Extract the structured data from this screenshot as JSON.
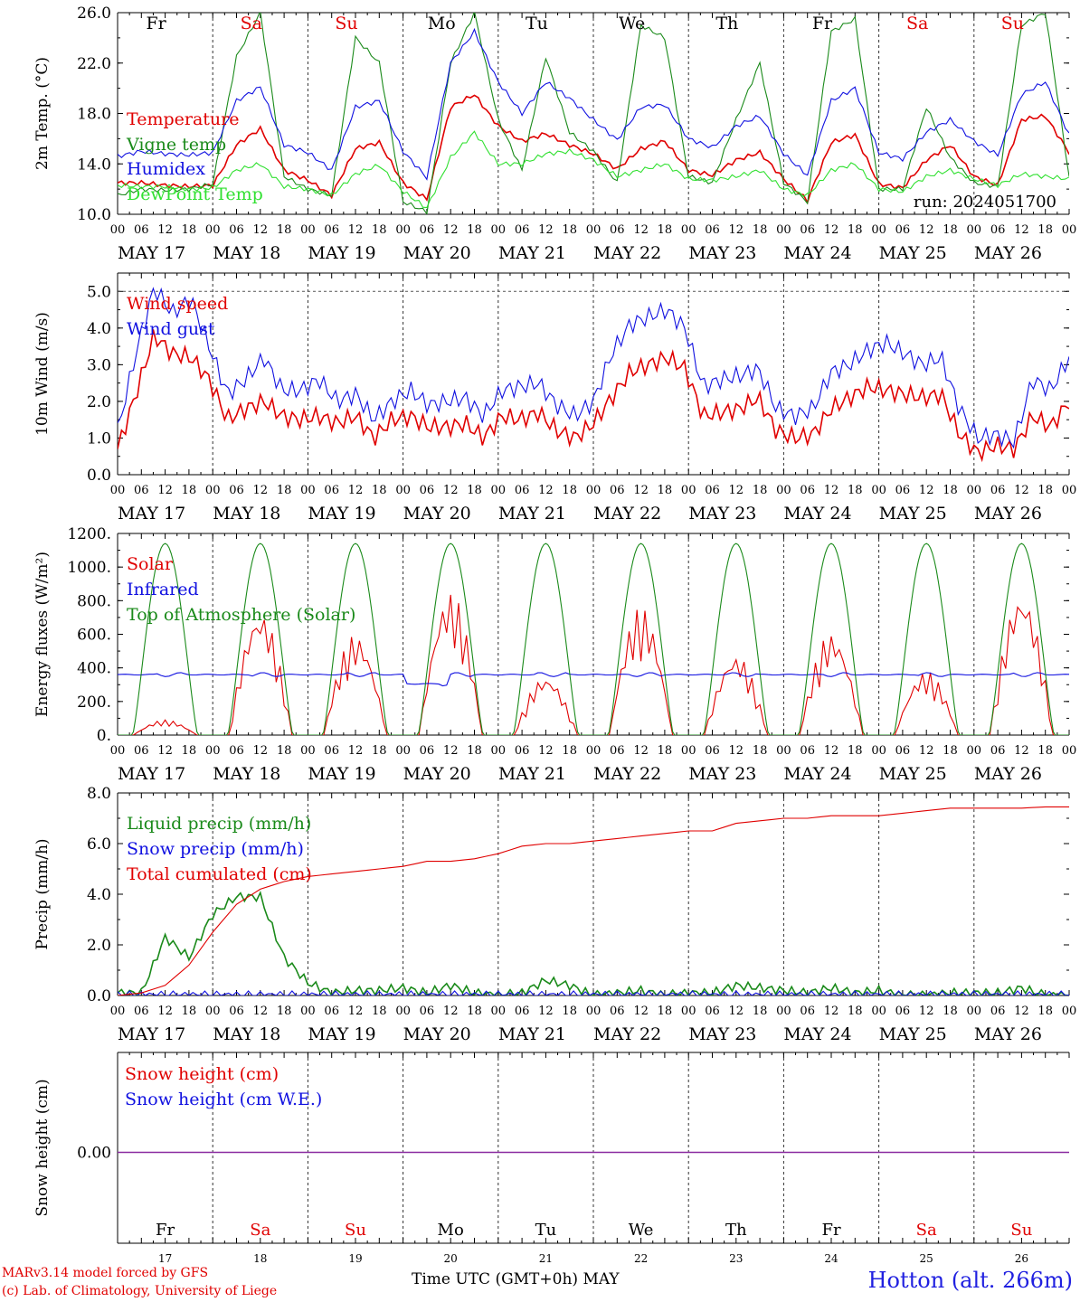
{
  "colors": {
    "red": "#e00000",
    "blue": "#1010e0",
    "green": "#1a8a1a",
    "lightgreen": "#30e030",
    "purple": "#8a2aa0",
    "grid": "#555555"
  },
  "days": [
    "Fr",
    "Sa",
    "Su",
    "Mo",
    "Tu",
    "We",
    "Th",
    "Fr",
    "Sa",
    "Su"
  ],
  "weekend_days": [
    "Sa",
    "Su"
  ],
  "day_numbers": [
    "17",
    "18",
    "19",
    "20",
    "21",
    "22",
    "23",
    "24",
    "25",
    "26"
  ],
  "dates": [
    "MAY 17",
    "MAY 18",
    "MAY 19",
    "MAY 20",
    "MAY 21",
    "MAY 22",
    "MAY 23",
    "MAY 24",
    "MAY 25",
    "MAY 26"
  ],
  "hour_ticks": [
    "00",
    "06",
    "12",
    "18"
  ],
  "run_label": "run: 2024051700",
  "footer": {
    "credit_line1": "MARv3.14 model forced by GFS",
    "credit_line2": "(c) Lab. of Climatology, University of Liege",
    "x_axis_label": "Time UTC (GMT+0h) MAY",
    "station": "Hotton (alt. 266m)"
  },
  "chart_data": [
    {
      "type": "line",
      "id": "temp",
      "ylabel": "2m Temp. (°C)",
      "ylim": [
        10,
        26
      ],
      "yticks": [
        "10.0",
        "14.0",
        "18.0",
        "22.0",
        "26.0"
      ],
      "yticks_values": [
        10,
        14,
        18,
        22,
        26
      ],
      "x": "hours since MAY 17 00 UTC, every 6h from 0 to 240",
      "series": [
        {
          "name": "Temperature",
          "color": "red",
          "values": [
            12.5,
            12.5,
            12.3,
            12.2,
            12.3,
            15.5,
            16.8,
            13.5,
            12.7,
            11.5,
            15.2,
            15.7,
            12.5,
            11.2,
            18.5,
            19.5,
            17.0,
            15.8,
            16.4,
            15.5,
            14.8,
            13.6,
            15.2,
            15.8,
            13.5,
            13.1,
            14.3,
            14.9,
            12.8,
            11.1,
            15.7,
            16.3,
            12.4,
            12.1,
            14.3,
            15.5,
            13.0,
            12.3,
            17.5,
            17.8,
            14.9
          ]
        },
        {
          "name": "Vigne temp",
          "color": "green",
          "values": [
            11.5,
            12.0,
            11.9,
            12.0,
            12.4,
            22.5,
            26.0,
            13.0,
            12.0,
            11.5,
            24.0,
            22.0,
            11.0,
            10.2,
            22.0,
            26.0,
            17.5,
            13.5,
            22.5,
            16.5,
            15.0,
            12.5,
            25.0,
            24.0,
            13.0,
            12.5,
            17.5,
            22.0,
            12.5,
            11.0,
            24.5,
            25.5,
            12.0,
            12.0,
            18.5,
            14.5,
            12.5,
            12.2,
            25.0,
            26.0,
            13.0
          ]
        },
        {
          "name": "Humidex",
          "color": "blue",
          "values": [
            14.6,
            15.0,
            14.8,
            14.7,
            14.9,
            19.0,
            20.1,
            15.5,
            14.9,
            13.5,
            18.5,
            19.0,
            15.0,
            12.9,
            22.0,
            24.5,
            20.5,
            18.0,
            20.5,
            19.2,
            17.5,
            15.9,
            18.5,
            18.7,
            16.0,
            15.3,
            17.0,
            17.8,
            14.8,
            13.1,
            19.0,
            20.0,
            14.9,
            14.4,
            16.5,
            17.5,
            15.8,
            14.7,
            19.5,
            20.5,
            16.3
          ]
        },
        {
          "name": "DewPoint Temp",
          "color": "lightgreen",
          "values": [
            12.3,
            12.2,
            12.2,
            12.0,
            12.1,
            13.5,
            14.0,
            12.2,
            12.0,
            11.5,
            13.2,
            13.9,
            11.8,
            10.5,
            14.5,
            16.5,
            14.0,
            14.0,
            14.8,
            15.0,
            14.3,
            13.0,
            13.5,
            14.0,
            12.8,
            12.7,
            13.0,
            13.5,
            12.0,
            11.5,
            13.5,
            14.0,
            12.0,
            11.8,
            13.0,
            13.5,
            12.8,
            12.3,
            13.2,
            13.0,
            12.8
          ]
        }
      ]
    },
    {
      "type": "line",
      "id": "wind",
      "ylabel": "10m Wind (m/s)",
      "ylim": [
        0,
        5.5
      ],
      "yticks": [
        "0.0",
        "1.0",
        "2.0",
        "3.0",
        "4.0",
        "5.0"
      ],
      "yticks_values": [
        0,
        1,
        2,
        3,
        4,
        5
      ],
      "reference_line": 5.0,
      "series": [
        {
          "name": "Wind speed",
          "color": "red",
          "values": [
            0.7,
            2.2,
            3.8,
            3.3,
            3.2,
            2.6,
            1.5,
            1.8,
            2.0,
            1.6,
            1.5,
            1.6,
            1.4,
            1.6,
            1.0,
            1.5,
            1.6,
            1.3,
            1.3,
            1.4,
            1.0,
            1.6,
            1.5,
            1.7,
            1.2,
            1.0,
            1.4,
            2.1,
            2.8,
            3.0,
            3.2,
            2.9,
            1.6,
            1.7,
            1.8,
            2.1,
            1.2,
            1.0,
            1.1,
            1.8,
            2.1,
            2.4,
            2.3,
            2.2,
            2.1,
            2.2,
            1.1,
            0.6,
            0.8,
            0.7,
            1.6,
            1.3,
            2.0
          ]
        },
        {
          "name": "Wind gust",
          "color": "blue",
          "values": [
            1.2,
            3.3,
            5.1,
            4.4,
            4.8,
            3.5,
            2.2,
            2.6,
            3.2,
            2.3,
            2.3,
            2.6,
            2.0,
            2.2,
            1.5,
            2.0,
            2.3,
            1.9,
            2.0,
            2.1,
            1.6,
            2.3,
            2.4,
            2.5,
            1.9,
            1.6,
            2.0,
            3.3,
            4.1,
            4.3,
            4.5,
            4.0,
            2.4,
            2.6,
            2.7,
            2.9,
            1.8,
            1.6,
            1.8,
            2.8,
            3.0,
            3.4,
            3.6,
            3.3,
            3.0,
            3.2,
            1.8,
            1.0,
            1.1,
            0.9,
            2.6,
            2.3,
            3.2
          ]
        }
      ]
    },
    {
      "type": "line",
      "id": "energy",
      "ylabel": "Energy fluxes (W/m²)",
      "ylim": [
        0,
        1200
      ],
      "yticks": [
        "0.",
        "200.",
        "400.",
        "600.",
        "800.",
        "1000.",
        "1200."
      ],
      "yticks_values": [
        0,
        200,
        400,
        600,
        800,
        1000,
        1200
      ],
      "series": [
        {
          "name": "Solar",
          "color": "red",
          "daily_peaks": [
            90,
            740,
            600,
            850,
            350,
            760,
            480,
            610,
            380,
            850
          ]
        },
        {
          "name": "Infrared",
          "color": "blue",
          "level": 360
        },
        {
          "name": "Top of Atmosphere (Solar)",
          "color": "green",
          "daily_peak": 1140
        }
      ]
    },
    {
      "type": "line",
      "id": "precip",
      "ylabel": "Precip (mm/h)",
      "ylim": [
        0,
        8
      ],
      "yticks": [
        "0.0",
        "2.0",
        "4.0",
        "6.0",
        "8.0"
      ],
      "yticks_values": [
        0,
        2,
        4,
        6,
        8
      ],
      "series": [
        {
          "name": "Liquid precip (mm/h)",
          "color": "green",
          "values": [
            0.1,
            0.1,
            2.3,
            1.5,
            3.2,
            3.9,
            3.9,
            1.5,
            0.5,
            0.1,
            0.2,
            0.2,
            0.3,
            0.1,
            0.4,
            0.1,
            0.0,
            0.1,
            0.6,
            0.4,
            0.0,
            0.1,
            0.2,
            0.0,
            0.1,
            0.1,
            0.4,
            0.3,
            0.2,
            0.1,
            0.3,
            0.1,
            0.2,
            0.0,
            0.0,
            0.1,
            0.1,
            0.1,
            0.3,
            0.0,
            0.0
          ]
        },
        {
          "name": "Snow precip (mm/h)",
          "color": "blue",
          "values": [
            0,
            0,
            0,
            0,
            0,
            0,
            0,
            0,
            0,
            0,
            0,
            0,
            0,
            0,
            0,
            0,
            0,
            0,
            0,
            0,
            0,
            0,
            0,
            0,
            0,
            0,
            0,
            0,
            0,
            0,
            0,
            0,
            0,
            0,
            0,
            0,
            0,
            0,
            0,
            0,
            0
          ]
        },
        {
          "name": "Total cumulated (cm)",
          "color": "red",
          "values": [
            0.0,
            0.1,
            0.4,
            1.2,
            2.5,
            3.6,
            4.2,
            4.5,
            4.7,
            4.8,
            4.9,
            5.0,
            5.1,
            5.3,
            5.3,
            5.4,
            5.6,
            5.9,
            6.0,
            6.0,
            6.1,
            6.2,
            6.3,
            6.4,
            6.5,
            6.5,
            6.8,
            6.9,
            7.0,
            7.0,
            7.1,
            7.1,
            7.1,
            7.2,
            7.3,
            7.4,
            7.4,
            7.4,
            7.4,
            7.45,
            7.45
          ]
        }
      ]
    },
    {
      "type": "line",
      "id": "snow",
      "ylabel": "Snow height (cm)",
      "yticks": [
        "0.00"
      ],
      "yticks_values": [
        0
      ],
      "series": [
        {
          "name": "Snow height (cm)",
          "color": "red",
          "values": [
            0,
            0
          ]
        },
        {
          "name": "Snow height (cm W.E.)",
          "color": "blue",
          "values": [
            0,
            0
          ]
        }
      ]
    }
  ]
}
